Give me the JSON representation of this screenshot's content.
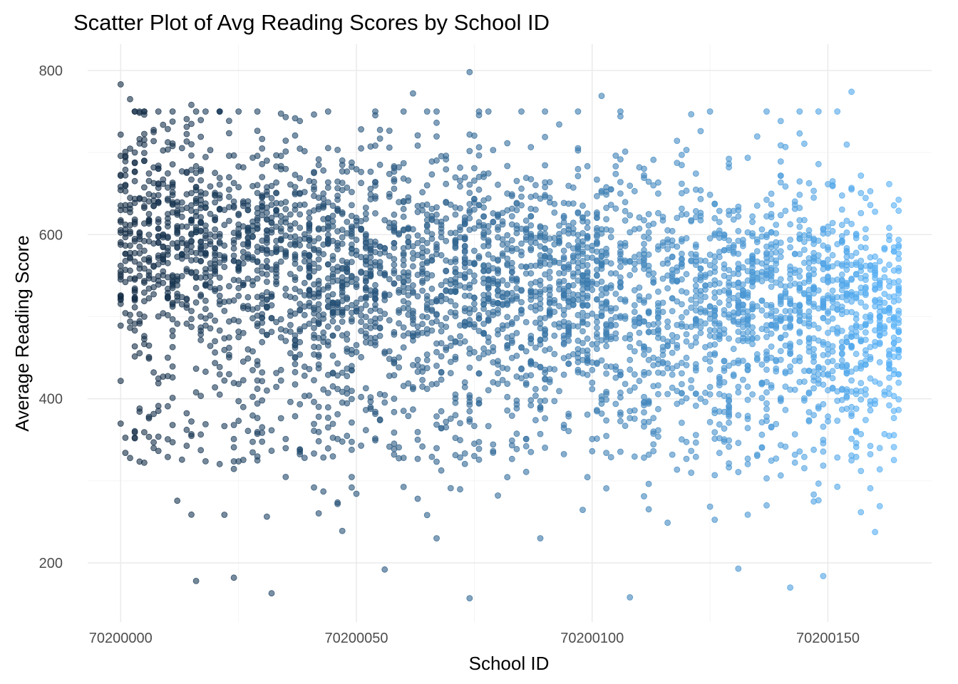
{
  "chart_data": {
    "type": "scatter",
    "title": "Scatter Plot of Avg Reading Scores by School ID",
    "xlabel": "School ID",
    "ylabel": "Average Reading Score",
    "xlim": [
      70199993,
      70200172
    ],
    "ylim": [
      128,
      832
    ],
    "x_ticks": [
      70200000,
      70200050,
      70200100,
      70200150
    ],
    "x_tick_labels": [
      "70200000",
      "70200050",
      "70200100",
      "70200150"
    ],
    "y_ticks": [
      200,
      400,
      600,
      800
    ],
    "y_tick_labels": [
      "200",
      "400",
      "600",
      "800"
    ],
    "grid": true,
    "legend": "none",
    "point_alpha": 0.6,
    "color_gradient": {
      "low": "#132B43",
      "high": "#56B1F7",
      "mapped_to": "School ID"
    },
    "school_id_range": [
      70200000,
      70200165
    ],
    "typical_score_range": [
      380,
      720
    ],
    "central_score_trend": [
      {
        "x": 70200000,
        "y": 600
      },
      {
        "x": 70200050,
        "y": 560
      },
      {
        "x": 70200100,
        "y": 540
      },
      {
        "x": 70200150,
        "y": 510
      }
    ],
    "notable_points": [
      {
        "x": 70200000,
        "y": 783
      },
      {
        "x": 70200002,
        "y": 765
      },
      {
        "x": 70200015,
        "y": 758
      },
      {
        "x": 70200062,
        "y": 772
      },
      {
        "x": 70200074,
        "y": 798
      },
      {
        "x": 70200102,
        "y": 769
      },
      {
        "x": 70200155,
        "y": 774
      },
      {
        "x": 70200016,
        "y": 178
      },
      {
        "x": 70200024,
        "y": 182
      },
      {
        "x": 70200032,
        "y": 163
      },
      {
        "x": 70200056,
        "y": 192
      },
      {
        "x": 70200074,
        "y": 157
      },
      {
        "x": 70200108,
        "y": 158
      },
      {
        "x": 70200131,
        "y": 193
      },
      {
        "x": 70200142,
        "y": 170
      },
      {
        "x": 70200149,
        "y": 184
      }
    ]
  }
}
